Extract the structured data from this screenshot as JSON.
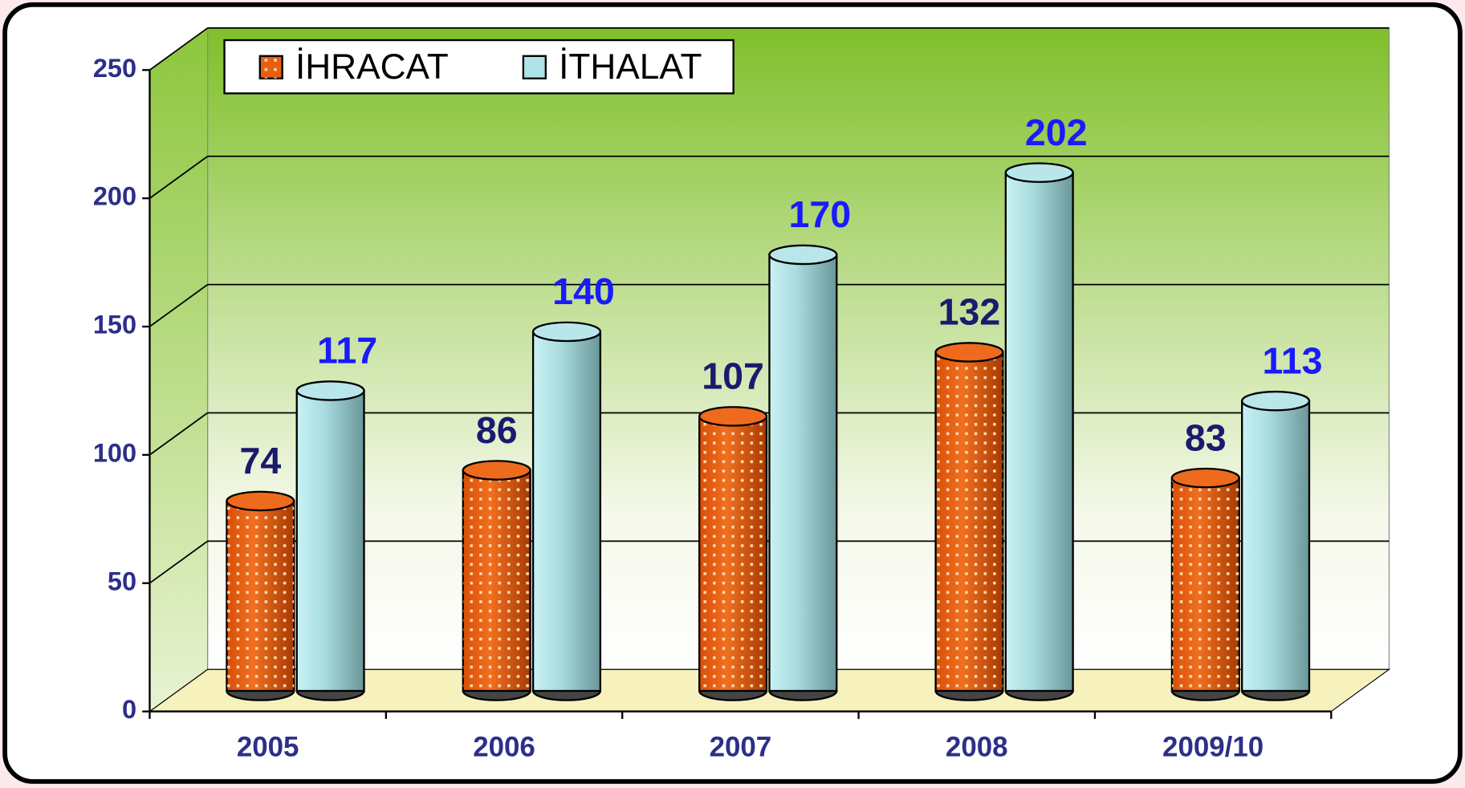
{
  "chart_data": {
    "type": "bar",
    "categories": [
      "2005",
      "2006",
      "2007",
      "2008",
      "2009/10"
    ],
    "series": [
      {
        "name": "İHRACAT",
        "color": "#e8600f",
        "values": [
          74,
          86,
          107,
          132,
          83
        ]
      },
      {
        "name": "İTHALAT",
        "color": "#aee3e8",
        "values": [
          117,
          140,
          170,
          202,
          113
        ]
      }
    ],
    "ylim": [
      0,
      250
    ],
    "yticks": [
      0,
      50,
      100,
      150,
      200,
      250
    ],
    "grid": true,
    "legend": "top-left"
  }
}
